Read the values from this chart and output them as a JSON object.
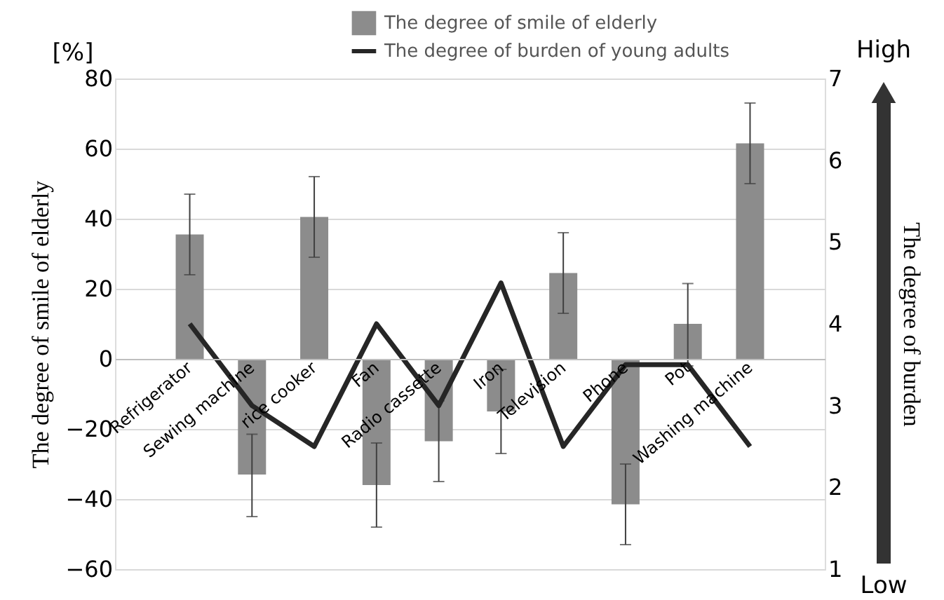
{
  "chart_data": {
    "type": "bar",
    "ylabel": "The degree of smile of elderly",
    "y2label": "The degree of burden",
    "categories": [
      "Refrigerator",
      "Sewing machine",
      "rice cooker",
      "Fan",
      "Radio cassette",
      "Iron",
      "Television",
      "Phone",
      "Pot",
      "Washing machine"
    ],
    "series": [
      {
        "name": "The degree of smile of elderly",
        "color": "#8c8c8c",
        "values": [
          35.5,
          -33,
          40.5,
          -36,
          -23.5,
          -15,
          24.5,
          -41.5,
          10,
          61.5
        ],
        "errors": [
          [
            24,
            47
          ],
          [
            -45,
            -21.5
          ],
          [
            29,
            52
          ],
          [
            -48,
            -24
          ],
          [
            -35,
            -12
          ],
          [
            -27,
            -3
          ],
          [
            13,
            36
          ],
          [
            -53,
            -30
          ],
          [
            -2,
            21.5
          ],
          [
            50,
            73
          ]
        ]
      },
      {
        "name": "The degree of burden of young adults",
        "type": "line",
        "axis": "y2",
        "color": "#262626",
        "values": [
          4,
          3,
          2.5,
          4,
          3,
          4.5,
          2.5,
          3.5,
          3.5,
          2.5
        ]
      }
    ],
    "ylim": [
      -60,
      80
    ],
    "yticks": [
      -60,
      -40,
      -20,
      0,
      20,
      40,
      60,
      80
    ],
    "y2lim": [
      1,
      7
    ],
    "y2ticks": [
      1,
      2,
      3,
      4,
      5,
      6,
      7
    ],
    "annotations": [
      "[%]",
      "High",
      "Low"
    ],
    "grid": "y",
    "legend": "top",
    "line_style": "solid",
    "marker": "none"
  }
}
